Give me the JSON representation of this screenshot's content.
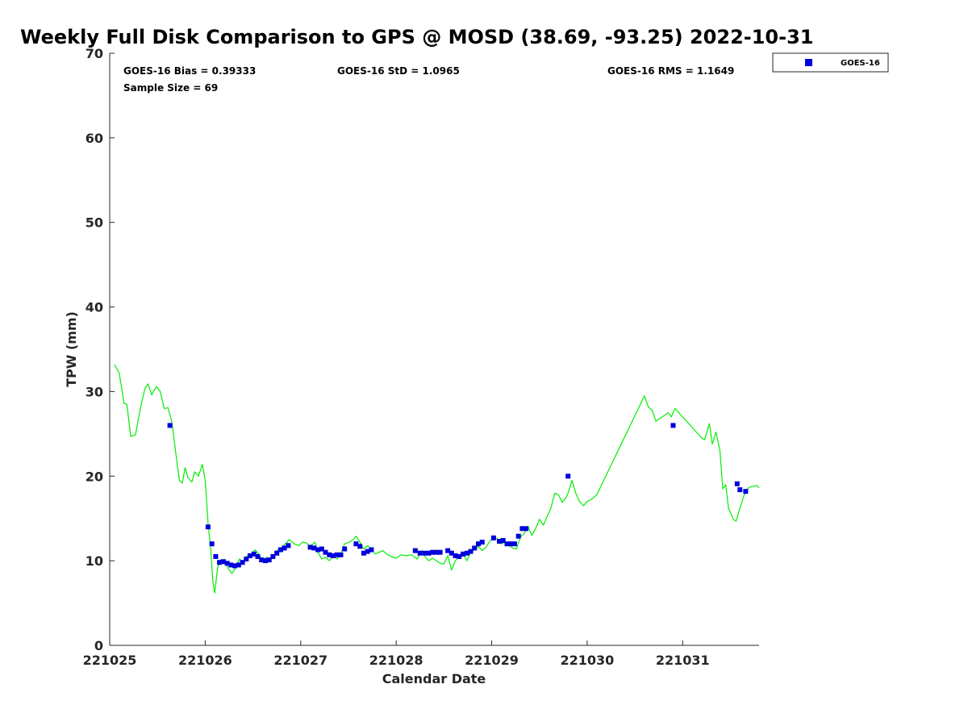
{
  "chart_data": {
    "type": "scatter",
    "title": "Weekly Full Disk Comparison to GPS @ MOSD (38.69, -93.25) 2022-10-31",
    "xlabel": "Calendar Date",
    "ylabel": "TPW (mm)",
    "xlim": [
      0,
      6.8
    ],
    "ylim": [
      0,
      70
    ],
    "x_ticks": [
      {
        "value": 0,
        "label": "221025"
      },
      {
        "value": 1,
        "label": "221026"
      },
      {
        "value": 2,
        "label": "221027"
      },
      {
        "value": 3,
        "label": "221028"
      },
      {
        "value": 4,
        "label": "221029"
      },
      {
        "value": 5,
        "label": "221030"
      },
      {
        "value": 6,
        "label": "221031"
      }
    ],
    "y_ticks": [
      0,
      10,
      20,
      30,
      40,
      50,
      60,
      70
    ],
    "x_units": "days after 221025",
    "grid": false,
    "stats": {
      "bias": "GOES-16 Bias = 0.39333",
      "std": "GOES-16 StD = 1.0965",
      "rms": "GOES-16 RMS = 1.1649",
      "sample_size": "Sample Size = 69"
    },
    "legend": {
      "position": "outside-top-right",
      "entries": [
        "GOES-16"
      ]
    },
    "colors": {
      "goes16": "#0000dd",
      "gps": "#00ee00"
    },
    "series": [
      {
        "name": "GOES-16",
        "marker": "square",
        "color": "#0000dd",
        "points": [
          [
            0.63,
            26.0
          ],
          [
            1.03,
            14.0
          ],
          [
            1.07,
            12.0
          ],
          [
            1.11,
            10.5
          ],
          [
            1.15,
            9.8
          ],
          [
            1.19,
            9.9
          ],
          [
            1.23,
            9.7
          ],
          [
            1.27,
            9.5
          ],
          [
            1.31,
            9.4
          ],
          [
            1.35,
            9.5
          ],
          [
            1.39,
            9.8
          ],
          [
            1.43,
            10.2
          ],
          [
            1.47,
            10.6
          ],
          [
            1.51,
            10.8
          ],
          [
            1.55,
            10.5
          ],
          [
            1.59,
            10.1
          ],
          [
            1.63,
            10.0
          ],
          [
            1.67,
            10.1
          ],
          [
            1.71,
            10.5
          ],
          [
            1.75,
            10.9
          ],
          [
            1.79,
            11.3
          ],
          [
            1.83,
            11.5
          ],
          [
            1.87,
            11.8
          ],
          [
            2.1,
            11.6
          ],
          [
            2.14,
            11.5
          ],
          [
            2.18,
            11.3
          ],
          [
            2.22,
            11.4
          ],
          [
            2.26,
            11.0
          ],
          [
            2.3,
            10.7
          ],
          [
            2.34,
            10.6
          ],
          [
            2.38,
            10.7
          ],
          [
            2.42,
            10.7
          ],
          [
            2.46,
            11.4
          ],
          [
            2.58,
            12.0
          ],
          [
            2.62,
            11.7
          ],
          [
            2.66,
            10.9
          ],
          [
            2.7,
            11.1
          ],
          [
            2.74,
            11.3
          ],
          [
            3.2,
            11.2
          ],
          [
            3.25,
            10.9
          ],
          [
            3.3,
            10.9
          ],
          [
            3.34,
            10.9
          ],
          [
            3.38,
            11.0
          ],
          [
            3.42,
            11.0
          ],
          [
            3.46,
            11.0
          ],
          [
            3.54,
            11.2
          ],
          [
            3.58,
            10.9
          ],
          [
            3.62,
            10.6
          ],
          [
            3.66,
            10.5
          ],
          [
            3.7,
            10.8
          ],
          [
            3.74,
            10.9
          ],
          [
            3.78,
            11.1
          ],
          [
            3.82,
            11.5
          ],
          [
            3.86,
            12.0
          ],
          [
            3.9,
            12.2
          ],
          [
            4.02,
            12.7
          ],
          [
            4.08,
            12.3
          ],
          [
            4.12,
            12.4
          ],
          [
            4.16,
            12.0
          ],
          [
            4.2,
            12.0
          ],
          [
            4.24,
            12.0
          ],
          [
            4.28,
            12.9
          ],
          [
            4.32,
            13.8
          ],
          [
            4.36,
            13.8
          ],
          [
            4.8,
            20.0
          ],
          [
            5.9,
            26.0
          ],
          [
            6.57,
            19.1
          ],
          [
            6.6,
            18.4
          ],
          [
            6.66,
            18.2
          ]
        ]
      },
      {
        "name": "GPS",
        "marker": "line",
        "color": "#00ee00",
        "points": [
          [
            0.05,
            33.2
          ],
          [
            0.1,
            32.2
          ],
          [
            0.15,
            28.6
          ],
          [
            0.18,
            28.5
          ],
          [
            0.22,
            24.7
          ],
          [
            0.27,
            24.9
          ],
          [
            0.32,
            28.0
          ],
          [
            0.37,
            30.4
          ],
          [
            0.4,
            30.9
          ],
          [
            0.44,
            29.6
          ],
          [
            0.49,
            30.6
          ],
          [
            0.53,
            30.0
          ],
          [
            0.57,
            28.0
          ],
          [
            0.61,
            28.1
          ],
          [
            0.65,
            26.5
          ],
          [
            0.7,
            22.0
          ],
          [
            0.73,
            19.5
          ],
          [
            0.76,
            19.2
          ],
          [
            0.79,
            21.0
          ],
          [
            0.82,
            19.8
          ],
          [
            0.86,
            19.3
          ],
          [
            0.89,
            20.5
          ],
          [
            0.93,
            20.0
          ],
          [
            0.97,
            21.4
          ],
          [
            1.0,
            19.5
          ],
          [
            1.03,
            14.5
          ],
          [
            1.06,
            11.0
          ],
          [
            1.08,
            7.5
          ],
          [
            1.1,
            6.2
          ],
          [
            1.13,
            9.2
          ],
          [
            1.16,
            10.1
          ],
          [
            1.2,
            10.0
          ],
          [
            1.24,
            9.1
          ],
          [
            1.28,
            8.5
          ],
          [
            1.32,
            9.2
          ],
          [
            1.36,
            10.2
          ],
          [
            1.4,
            9.8
          ],
          [
            1.44,
            10.6
          ],
          [
            1.48,
            10.5
          ],
          [
            1.52,
            11.3
          ],
          [
            1.56,
            10.8
          ],
          [
            1.6,
            10.0
          ],
          [
            1.64,
            10.4
          ],
          [
            1.68,
            10.0
          ],
          [
            1.72,
            10.6
          ],
          [
            1.76,
            11.3
          ],
          [
            1.8,
            11.6
          ],
          [
            1.84,
            12.0
          ],
          [
            1.88,
            12.5
          ],
          [
            1.93,
            12.0
          ],
          [
            1.98,
            11.8
          ],
          [
            2.02,
            12.2
          ],
          [
            2.06,
            12.1
          ],
          [
            2.1,
            11.7
          ],
          [
            2.15,
            12.2
          ],
          [
            2.18,
            11.0
          ],
          [
            2.22,
            10.2
          ],
          [
            2.26,
            10.4
          ],
          [
            2.3,
            10.0
          ],
          [
            2.34,
            10.6
          ],
          [
            2.38,
            10.2
          ],
          [
            2.42,
            10.8
          ],
          [
            2.46,
            12.0
          ],
          [
            2.51,
            12.2
          ],
          [
            2.55,
            12.5
          ],
          [
            2.58,
            12.9
          ],
          [
            2.62,
            12.2
          ],
          [
            2.66,
            11.4
          ],
          [
            2.7,
            11.8
          ],
          [
            2.74,
            11.4
          ],
          [
            2.78,
            10.8
          ],
          [
            2.82,
            11.0
          ],
          [
            2.86,
            11.2
          ],
          [
            2.9,
            10.8
          ],
          [
            2.95,
            10.5
          ],
          [
            3.0,
            10.3
          ],
          [
            3.05,
            10.7
          ],
          [
            3.1,
            10.6
          ],
          [
            3.16,
            10.7
          ],
          [
            3.22,
            10.2
          ],
          [
            3.27,
            11.2
          ],
          [
            3.3,
            10.5
          ],
          [
            3.34,
            10.0
          ],
          [
            3.38,
            10.3
          ],
          [
            3.42,
            10.0
          ],
          [
            3.46,
            9.7
          ],
          [
            3.5,
            9.6
          ],
          [
            3.54,
            10.6
          ],
          [
            3.58,
            8.9
          ],
          [
            3.62,
            10.0
          ],
          [
            3.66,
            10.5
          ],
          [
            3.7,
            10.8
          ],
          [
            3.74,
            10.0
          ],
          [
            3.78,
            11.0
          ],
          [
            3.82,
            11.3
          ],
          [
            3.86,
            11.7
          ],
          [
            3.9,
            11.2
          ],
          [
            3.94,
            11.6
          ],
          [
            3.98,
            12.3
          ],
          [
            4.02,
            12.8
          ],
          [
            4.06,
            12.6
          ],
          [
            4.1,
            12.0
          ],
          [
            4.14,
            12.2
          ],
          [
            4.18,
            11.8
          ],
          [
            4.22,
            11.5
          ],
          [
            4.26,
            11.4
          ],
          [
            4.3,
            12.8
          ],
          [
            4.34,
            13.2
          ],
          [
            4.38,
            14.1
          ],
          [
            4.42,
            13.0
          ],
          [
            4.46,
            13.8
          ],
          [
            4.5,
            14.9
          ],
          [
            4.54,
            14.2
          ],
          [
            4.58,
            15.2
          ],
          [
            4.62,
            16.2
          ],
          [
            4.66,
            18.0
          ],
          [
            4.7,
            17.8
          ],
          [
            4.74,
            16.9
          ],
          [
            4.78,
            17.5
          ],
          [
            4.8,
            18.0
          ],
          [
            4.84,
            19.5
          ],
          [
            4.88,
            18.0
          ],
          [
            4.92,
            17.0
          ],
          [
            4.96,
            16.5
          ],
          [
            5.0,
            17.0
          ],
          [
            5.05,
            17.3
          ],
          [
            5.1,
            17.8
          ],
          [
            5.6,
            29.5
          ],
          [
            5.64,
            28.2
          ],
          [
            5.68,
            27.8
          ],
          [
            5.72,
            26.5
          ],
          [
            5.85,
            27.5
          ],
          [
            5.88,
            27.0
          ],
          [
            5.92,
            28.0
          ],
          [
            6.04,
            26.5
          ],
          [
            6.2,
            24.5
          ],
          [
            6.23,
            24.3
          ],
          [
            6.28,
            26.2
          ],
          [
            6.31,
            23.8
          ],
          [
            6.35,
            25.2
          ],
          [
            6.39,
            23.0
          ],
          [
            6.42,
            18.5
          ],
          [
            6.45,
            19.0
          ],
          [
            6.48,
            16.2
          ],
          [
            6.53,
            14.9
          ],
          [
            6.56,
            14.7
          ],
          [
            6.6,
            16.2
          ],
          [
            6.63,
            17.3
          ],
          [
            6.66,
            18.3
          ],
          [
            6.7,
            18.7
          ],
          [
            6.78,
            18.9
          ],
          [
            6.8,
            18.6
          ]
        ]
      }
    ]
  }
}
